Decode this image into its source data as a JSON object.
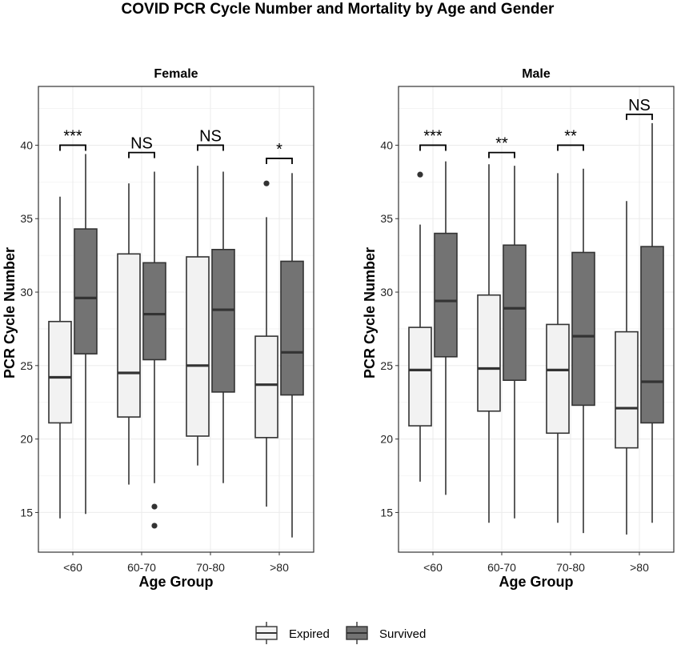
{
  "chart_data": {
    "type": "box",
    "title": "COVID PCR Cycle Number and Mortality by Age and Gender",
    "xlabel": "Age Group",
    "ylabel": "PCR Cycle Number",
    "ylim": [
      12.3,
      44
    ],
    "yticks": [
      15,
      20,
      25,
      30,
      35,
      40
    ],
    "categories": [
      "<60",
      "60-70",
      "70-80",
      ">80"
    ],
    "legend": {
      "position": "bottom",
      "entries": [
        {
          "name": "Expired",
          "color": "#f2f2f2"
        },
        {
          "name": "Survived",
          "color": "#737373"
        }
      ]
    },
    "panels": [
      {
        "name": "Female",
        "groups": [
          {
            "category": "<60",
            "significance": "***",
            "bracket_y": 40.0,
            "boxes": [
              {
                "series": "Expired",
                "whisker_low": 14.6,
                "q1": 21.1,
                "median": 24.2,
                "q3": 28.0,
                "whisker_high": 36.5,
                "outliers": []
              },
              {
                "series": "Survived",
                "whisker_low": 14.9,
                "q1": 25.8,
                "median": 29.6,
                "q3": 34.3,
                "whisker_high": 39.4,
                "outliers": []
              }
            ]
          },
          {
            "category": "60-70",
            "significance": "NS",
            "bracket_y": 39.5,
            "boxes": [
              {
                "series": "Expired",
                "whisker_low": 16.9,
                "q1": 21.5,
                "median": 24.5,
                "q3": 32.6,
                "whisker_high": 37.4,
                "outliers": []
              },
              {
                "series": "Survived",
                "whisker_low": 17.0,
                "q1": 25.4,
                "median": 28.5,
                "q3": 32.0,
                "whisker_high": 38.2,
                "outliers": [
                  15.4,
                  14.1
                ]
              }
            ]
          },
          {
            "category": "70-80",
            "significance": "NS",
            "bracket_y": 40.0,
            "boxes": [
              {
                "series": "Expired",
                "whisker_low": 18.2,
                "q1": 20.2,
                "median": 25.0,
                "q3": 32.4,
                "whisker_high": 38.6,
                "outliers": []
              },
              {
                "series": "Survived",
                "whisker_low": 17.0,
                "q1": 23.2,
                "median": 28.8,
                "q3": 32.9,
                "whisker_high": 38.2,
                "outliers": []
              }
            ]
          },
          {
            "category": ">80",
            "significance": "*",
            "bracket_y": 39.1,
            "boxes": [
              {
                "series": "Expired",
                "whisker_low": 15.4,
                "q1": 20.1,
                "median": 23.7,
                "q3": 27.0,
                "whisker_high": 35.1,
                "outliers": [
                  37.4
                ]
              },
              {
                "series": "Survived",
                "whisker_low": 13.3,
                "q1": 23.0,
                "median": 25.9,
                "q3": 32.1,
                "whisker_high": 38.1,
                "outliers": []
              }
            ]
          }
        ]
      },
      {
        "name": "Male",
        "groups": [
          {
            "category": "<60",
            "significance": "***",
            "bracket_y": 40.0,
            "boxes": [
              {
                "series": "Expired",
                "whisker_low": 17.1,
                "q1": 20.9,
                "median": 24.7,
                "q3": 27.6,
                "whisker_high": 34.6,
                "outliers": [
                  38.0
                ]
              },
              {
                "series": "Survived",
                "whisker_low": 16.2,
                "q1": 25.6,
                "median": 29.4,
                "q3": 34.0,
                "whisker_high": 38.9,
                "outliers": []
              }
            ]
          },
          {
            "category": "60-70",
            "significance": "**",
            "bracket_y": 39.5,
            "boxes": [
              {
                "series": "Expired",
                "whisker_low": 14.3,
                "q1": 21.9,
                "median": 24.8,
                "q3": 29.8,
                "whisker_high": 38.7,
                "outliers": []
              },
              {
                "series": "Survived",
                "whisker_low": 14.6,
                "q1": 24.0,
                "median": 28.9,
                "q3": 33.2,
                "whisker_high": 38.6,
                "outliers": []
              }
            ]
          },
          {
            "category": "70-80",
            "significance": "**",
            "bracket_y": 40.0,
            "boxes": [
              {
                "series": "Expired",
                "whisker_low": 14.3,
                "q1": 20.4,
                "median": 24.7,
                "q3": 27.8,
                "whisker_high": 38.1,
                "outliers": []
              },
              {
                "series": "Survived",
                "whisker_low": 13.6,
                "q1": 22.3,
                "median": 27.0,
                "q3": 32.7,
                "whisker_high": 38.4,
                "outliers": []
              }
            ]
          },
          {
            "category": ">80",
            "significance": "NS",
            "bracket_y": 42.1,
            "boxes": [
              {
                "series": "Expired",
                "whisker_low": 13.5,
                "q1": 19.4,
                "median": 22.1,
                "q3": 27.3,
                "whisker_high": 36.2,
                "outliers": []
              },
              {
                "series": "Survived",
                "whisker_low": 14.3,
                "q1": 21.1,
                "median": 23.9,
                "q3": 33.1,
                "whisker_high": 41.5,
                "outliers": []
              }
            ]
          }
        ]
      }
    ]
  }
}
